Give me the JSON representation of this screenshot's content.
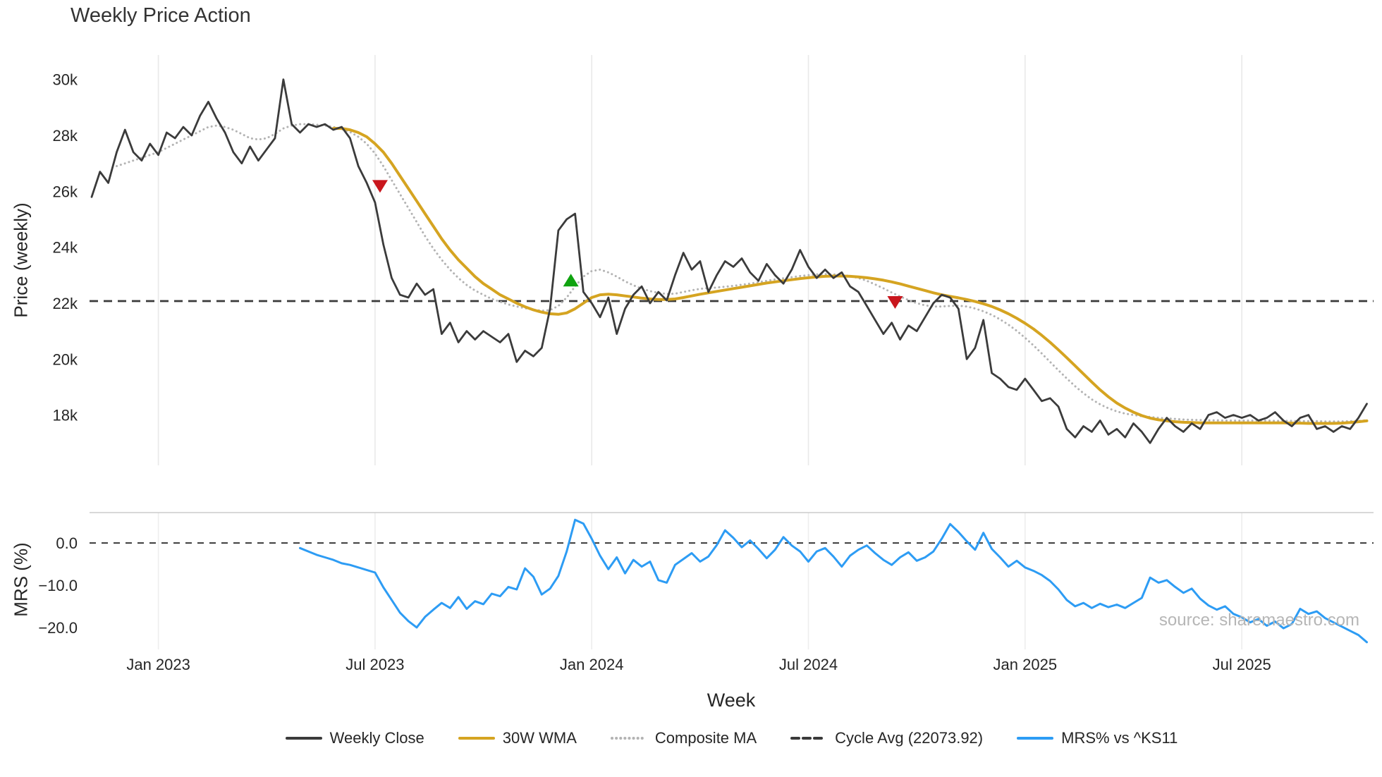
{
  "source_note": "source: sharemaestro.com",
  "chart_data": {
    "type": "line",
    "title": "Weekly Price Action",
    "xlabel": "Week",
    "x_tick_labels": [
      "Jan 2023",
      "Jul 2023",
      "Jan 2024",
      "Jul 2024",
      "Jan 2025",
      "Jul 2025"
    ],
    "x_tick_weeks": [
      8,
      34,
      60,
      86,
      112,
      138
    ],
    "grid": "vertical-only",
    "legend_position": "bottom-center",
    "panels": [
      {
        "name": "price",
        "ylabel": "Price (weekly)",
        "ylim": [
          16200,
          30950
        ],
        "y_ticks": [
          18000,
          20000,
          22000,
          24000,
          26000,
          28000,
          30000
        ],
        "y_tick_labels": [
          "18k",
          "20k",
          "22k",
          "24k",
          "26k",
          "28k",
          "30k"
        ],
        "cycle_avg": 22073.92,
        "series": [
          {
            "name": "Weekly Close",
            "color": "#3b3b3b",
            "style": "solid",
            "start_week": 0,
            "values": [
              25800,
              26700,
              26300,
              27400,
              28200,
              27400,
              27100,
              27700,
              27300,
              28100,
              27900,
              28300,
              28000,
              28700,
              29200,
              28600,
              28100,
              27400,
              27000,
              27600,
              27100,
              27500,
              27900,
              30000,
              28400,
              28100,
              28400,
              28300,
              28400,
              28200,
              28300,
              27900,
              26900,
              26300,
              25600,
              24100,
              22900,
              22300,
              22200,
              22700,
              22300,
              22500,
              20900,
              21300,
              20600,
              21000,
              20700,
              21000,
              20800,
              20600,
              20900,
              19900,
              20300,
              20100,
              20400,
              21800,
              24600,
              25000,
              25200,
              22400,
              22000,
              21500,
              22200,
              20900,
              21800,
              22300,
              22600,
              22000,
              22400,
              22100,
              23000,
              23800,
              23200,
              23500,
              22400,
              23000,
              23500,
              23300,
              23600,
              23100,
              22800,
              23400,
              23000,
              22700,
              23200,
              23900,
              23300,
              22900,
              23200,
              22900,
              23100,
              22600,
              22400,
              21900,
              21400,
              20900,
              21300,
              20700,
              21200,
              21000,
              21500,
              22000,
              22300,
              22200,
              21800,
              20000,
              20400,
              21400,
              19500,
              19300,
              19000,
              18900,
              19300,
              18900,
              18500,
              18600,
              18300,
              17500,
              17200,
              17600,
              17400,
              17800,
              17300,
              17500,
              17200,
              17700,
              17400,
              17000,
              17500,
              17900,
              17600,
              17400,
              17700,
              17500,
              18000,
              18100,
              17900,
              18000,
              17900,
              18000,
              17800,
              17900,
              18100,
              17800,
              17600,
              17900,
              18000,
              17500,
              17600,
              17400,
              17600,
              17500,
              17900,
              18400
            ]
          },
          {
            "name": "30W WMA",
            "color": "#D5A421",
            "style": "solid",
            "start_week": 29,
            "values": [
              28250,
              28250,
              28200,
              28100,
              27950,
              27700,
              27400,
              27000,
              26550,
              26100,
              25650,
              25200,
              24750,
              24300,
              23900,
              23550,
              23250,
              22950,
              22700,
              22500,
              22300,
              22150,
              22000,
              21870,
              21760,
              21680,
              21620,
              21600,
              21650,
              21800,
              22000,
              22200,
              22300,
              22320,
              22300,
              22260,
              22220,
              22180,
              22150,
              22130,
              22130,
              22150,
              22200,
              22260,
              22320,
              22370,
              22420,
              22470,
              22520,
              22570,
              22620,
              22670,
              22720,
              22760,
              22800,
              22840,
              22880,
              22910,
              22940,
              22960,
              22970,
              22970,
              22960,
              22940,
              22910,
              22870,
              22820,
              22760,
              22690,
              22610,
              22530,
              22450,
              22370,
              22300,
              22240,
              22190,
              22130,
              22060,
              21980,
              21880,
              21760,
              21620,
              21460,
              21280,
              21080,
              20850,
              20600,
              20330,
              20050,
              19760,
              19470,
              19180,
              18900,
              18650,
              18430,
              18250,
              18100,
              17980,
              17890,
              17830,
              17790,
              17760,
              17740,
              17730,
              17720,
              17720,
              17720,
              17720,
              17720,
              17720,
              17720,
              17720,
              17720,
              17720,
              17720,
              17710,
              17710,
              17700,
              17700,
              17700,
              17700,
              17710,
              17730,
              17760,
              17790
            ]
          },
          {
            "name": "Composite MA",
            "color": "#b3b3b3",
            "style": "dotted",
            "start_week": 3,
            "values": [
              26900,
              27000,
              27100,
              27200,
              27300,
              27400,
              27550,
              27700,
              27850,
              28000,
              28150,
              28300,
              28350,
              28300,
              28200,
              28050,
              27900,
              27850,
              27900,
              28050,
              28250,
              28350,
              28400,
              28400,
              28380,
              28350,
              28300,
              28230,
              28120,
              27950,
              27700,
              27350,
              26900,
              26400,
              25900,
              25400,
              24900,
              24400,
              23950,
              23550,
              23200,
              22900,
              22650,
              22450,
              22300,
              22150,
              22050,
              21950,
              21880,
              21820,
              21770,
              21730,
              21750,
              21900,
              22200,
              22600,
              22950,
              23150,
              23200,
              23100,
              22950,
              22780,
              22640,
              22520,
              22430,
              22370,
              22330,
              22340,
              22400,
              22460,
              22510,
              22540,
              22560,
              22590,
              22620,
              22660,
              22700,
              22750,
              22800,
              22850,
              22890,
              22930,
              22970,
              23000,
              23030,
              23040,
              23030,
              23010,
              22970,
              22900,
              22800,
              22670,
              22530,
              22380,
              22240,
              22110,
              22000,
              21920,
              21880,
              21880,
              21900,
              21910,
              21880,
              21810,
              21710,
              21580,
              21420,
              21230,
              21010,
              20760,
              20490,
              20200,
              19900,
              19600,
              19310,
              19030,
              18780,
              18560,
              18380,
              18240,
              18130,
              18050,
              18000,
              17960,
              17930,
              17900,
              17880,
              17860,
              17840,
              17830,
              17820,
              17810,
              17810,
              17800,
              17800,
              17800,
              17800,
              17800,
              17800,
              17790,
              17790,
              17790,
              17780,
              17780,
              17780,
              17770,
              17770,
              17770,
              17780,
              17790,
              17810
            ]
          },
          {
            "name": "Cycle Avg (22073.92)",
            "color": "#3a3a3a",
            "style": "dashed",
            "value": 22073.92
          }
        ],
        "markers": [
          {
            "shape": "triangle-down",
            "label": "sell-signal",
            "color": "#C9161D",
            "week": 34.6,
            "value": 26200
          },
          {
            "shape": "triangle-up",
            "label": "buy-signal",
            "color": "#10A310",
            "week": 57.5,
            "value": 22800
          },
          {
            "shape": "triangle-down",
            "label": "sell-signal",
            "color": "#C9161D",
            "week": 96.4,
            "value": 22050
          }
        ]
      },
      {
        "name": "mrs",
        "ylabel": "MRS (%)",
        "ylim": [
          -25.2,
          7.2
        ],
        "y_ticks": [
          0,
          -10,
          -20
        ],
        "y_tick_labels": [
          "0.0",
          "−10.0",
          "−20.0"
        ],
        "zero_line": 0,
        "series": [
          {
            "name": "MRS% vs ^KS11",
            "color": "#2D9CF4",
            "style": "solid",
            "start_week": 25,
            "values": [
              -1.2,
              -2.0,
              -2.8,
              -3.4,
              -4.0,
              -4.8,
              -5.2,
              -5.8,
              -6.4,
              -7.0,
              -10.5,
              -13.5,
              -16.5,
              -18.5,
              -20.0,
              -17.5,
              -15.8,
              -14.2,
              -15.4,
              -12.8,
              -15.6,
              -13.8,
              -14.5,
              -12.0,
              -12.6,
              -10.4,
              -11.0,
              -6.0,
              -8.0,
              -12.2,
              -10.8,
              -7.8,
              -2.0,
              5.5,
              4.6,
              1.0,
              -3.0,
              -6.2,
              -3.4,
              -7.2,
              -4.0,
              -5.6,
              -4.4,
              -8.8,
              -9.4,
              -5.2,
              -3.8,
              -2.4,
              -4.4,
              -3.2,
              -0.5,
              3.0,
              1.2,
              -1.0,
              0.6,
              -1.4,
              -3.6,
              -1.6,
              1.4,
              -0.6,
              -2.0,
              -4.4,
              -2.0,
              -1.2,
              -3.2,
              -5.6,
              -3.0,
              -1.6,
              -0.6,
              -2.4,
              -4.0,
              -5.2,
              -3.4,
              -2.2,
              -4.2,
              -3.4,
              -2.0,
              1.0,
              4.5,
              2.6,
              0.4,
              -1.6,
              2.4,
              -1.4,
              -3.4,
              -5.6,
              -4.2,
              -5.8,
              -6.6,
              -7.6,
              -9.0,
              -11.0,
              -13.5,
              -15.0,
              -14.2,
              -15.4,
              -14.4,
              -15.2,
              -14.6,
              -15.4,
              -14.2,
              -13.0,
              -8.2,
              -9.4,
              -8.8,
              -10.4,
              -11.8,
              -10.8,
              -13.2,
              -14.8,
              -15.8,
              -15.0,
              -16.8,
              -17.6,
              -18.8,
              -18.0,
              -19.6,
              -18.6,
              -20.2,
              -19.2,
              -15.6,
              -16.8,
              -16.2,
              -17.8,
              -18.8,
              -19.8,
              -20.8,
              -21.8,
              -23.5
            ]
          }
        ]
      }
    ],
    "legend": [
      {
        "label": "Weekly Close",
        "color": "#3b3b3b",
        "style": "solid"
      },
      {
        "label": "30W WMA",
        "color": "#D5A421",
        "style": "solid"
      },
      {
        "label": "Composite MA",
        "color": "#b3b3b3",
        "style": "dotted"
      },
      {
        "label": "Cycle Avg (22073.92)",
        "color": "#3a3a3a",
        "style": "dashed"
      },
      {
        "label": "MRS% vs ^KS11",
        "color": "#2D9CF4",
        "style": "solid"
      }
    ]
  }
}
